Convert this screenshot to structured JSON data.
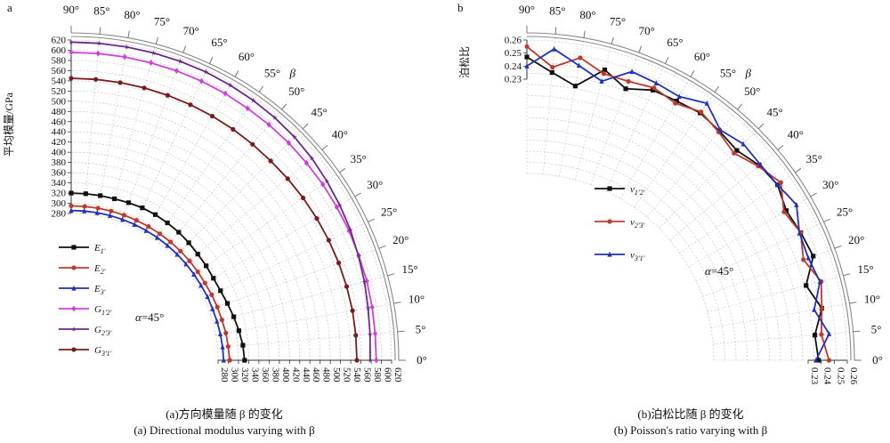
{
  "chart_data": [
    {
      "type": "line",
      "subtype": "polar-quarter",
      "panel_label": "a",
      "angle_axis_label": "β",
      "angle_ticks": [
        "0°",
        "5°",
        "10°",
        "15°",
        "20°",
        "25°",
        "30°",
        "35°",
        "40°",
        "45°",
        "50°",
        "55°",
        "60°",
        "65°",
        "70°",
        "75°",
        "80°",
        "85°",
        "90°"
      ],
      "ylabel": "平均模量/GPa",
      "radial_range": [
        280,
        620
      ],
      "radial_ticks": [
        280,
        300,
        320,
        340,
        360,
        380,
        400,
        420,
        440,
        460,
        480,
        500,
        520,
        540,
        560,
        580,
        600,
        620
      ],
      "grid": true,
      "annotation": "α=45°",
      "caption_cn": "(a)方向模量随 β 的变化",
      "caption_en": "(a) Directional modulus varying with β",
      "legend_position": "left-middle",
      "angles": [
        0,
        5,
        10,
        15,
        20,
        25,
        30,
        35,
        40,
        45,
        50,
        55,
        60,
        65,
        70,
        75,
        80,
        85,
        90
      ],
      "series": [
        {
          "name": "E1'",
          "legend_main": "E",
          "legend_sub": "1'",
          "color": "#111111",
          "marker": "square",
          "values": [
            332,
            330,
            326,
            322,
            318,
            315,
            314,
            315,
            316,
            318,
            320,
            321,
            322,
            322,
            321,
            320,
            320,
            320,
            320
          ]
        },
        {
          "name": "E2'",
          "legend_main": "E",
          "legend_sub": "2'",
          "color": "#c0392b",
          "marker": "circle",
          "values": [
            303,
            301,
            300,
            298,
            297,
            296,
            295,
            295,
            295,
            295,
            295,
            295,
            295,
            295,
            295,
            295,
            295,
            295,
            295
          ]
        },
        {
          "name": "E3'",
          "legend_main": "E",
          "legend_sub": "3'",
          "color": "#2030c0",
          "marker": "triangle",
          "values": [
            291,
            290,
            289,
            288,
            287,
            287,
            286,
            286,
            286,
            286,
            286,
            286,
            286,
            286,
            286,
            286,
            286,
            286,
            286
          ]
        },
        {
          "name": "G1'2'",
          "legend_main": "G",
          "legend_sub": "1'2'",
          "color": "#d040d8",
          "marker": "diamond",
          "values": [
            590,
            590,
            591,
            592,
            592,
            593,
            593,
            594,
            594,
            595,
            595,
            595,
            596,
            596,
            596,
            596,
            596,
            596,
            596
          ]
        },
        {
          "name": "G2'3'",
          "legend_main": "G",
          "legend_sub": "2'3'",
          "color": "#6a2a8a",
          "marker": "star",
          "values": [
            578,
            580,
            583,
            587,
            591,
            596,
            600,
            604,
            608,
            611,
            613,
            614,
            615,
            616,
            616,
            616,
            616,
            616,
            616
          ]
        },
        {
          "name": "G3'1'",
          "legend_main": "G",
          "legend_sub": "3'1'",
          "color": "#7a1a1a",
          "marker": "circle",
          "values": [
            552,
            552,
            552,
            551,
            550,
            549,
            548,
            547,
            546,
            545,
            545,
            545,
            545,
            545,
            545,
            545,
            545,
            545,
            545
          ]
        }
      ]
    },
    {
      "type": "line",
      "subtype": "polar-quarter",
      "panel_label": "b",
      "angle_axis_label": "β",
      "angle_ticks": [
        "0°",
        "5°",
        "10°",
        "15°",
        "20°",
        "25°",
        "30°",
        "35°",
        "40°",
        "45°",
        "50°",
        "55°",
        "60°",
        "65°",
        "70°",
        "75°",
        "80°",
        "85°",
        "90°"
      ],
      "ylabel": "泊松比",
      "radial_range": [
        0.23,
        0.26
      ],
      "radial_ticks": [
        0.23,
        0.24,
        0.25,
        0.26
      ],
      "grid": true,
      "annotation": "α=45°",
      "caption_cn": "(b)泊松比随 β 的变化",
      "caption_en": "(b) Poisson's ratio varying with β",
      "legend_position": "left-middle",
      "angles": [
        0,
        5,
        10,
        15,
        20,
        25,
        30,
        35,
        40,
        45,
        50,
        55,
        60,
        65,
        70,
        75,
        80,
        85,
        90
      ],
      "series": [
        {
          "name": "ν1'2'",
          "legend_main": "ν",
          "legend_sub": "1'2'",
          "color": "#111111",
          "marker": "square",
          "values": [
            0.238,
            0.236,
            0.244,
            0.236,
            0.248,
            0.246,
            0.244,
            0.249,
            0.247,
            0.242,
            0.244,
            0.246,
            0.244,
            0.243,
            0.236,
            0.245,
            0.228,
            0.236,
            0.247
          ]
        },
        {
          "name": "ν2'3'",
          "legend_main": "ν",
          "legend_sub": "2'3'",
          "color": "#c0392b",
          "marker": "circle",
          "values": [
            0.246,
            0.241,
            0.244,
            0.248,
            0.24,
            0.246,
            0.242,
            0.252,
            0.246,
            0.239,
            0.243,
            0.247,
            0.242,
            0.245,
            0.242,
            0.242,
            0.25,
            0.24,
            0.255
          ]
        },
        {
          "name": "ν3'1'",
          "legend_main": "ν",
          "legend_sub": "3'1'",
          "color": "#2030c0",
          "marker": "triangle",
          "values": [
            0.236,
            0.247,
            0.238,
            0.247,
            0.244,
            0.245,
            0.253,
            0.249,
            0.248,
            0.249,
            0.245,
            0.255,
            0.248,
            0.249,
            0.25,
            0.236,
            0.244,
            0.254,
            0.24
          ]
        }
      ]
    }
  ]
}
